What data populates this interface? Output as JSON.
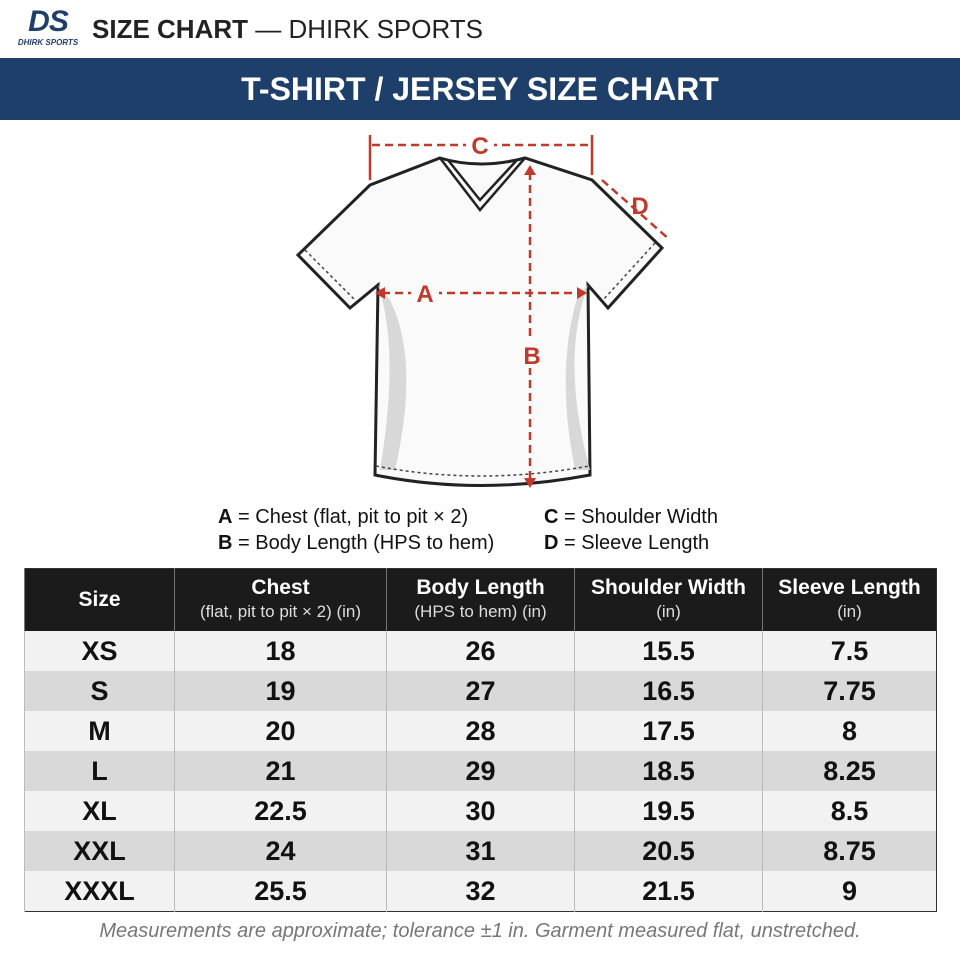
{
  "header": {
    "logo": "DS",
    "logo_sub": "DHIRK SPORTS",
    "title": "SIZE CHART",
    "separator": "—",
    "brand": "DHIRK SPORTS"
  },
  "banner": "T-SHIRT / JERSEY SIZE CHART",
  "legend": [
    {
      "key": "A",
      "text": "= Chest (flat, pit to pit × 2)"
    },
    {
      "key": "B",
      "text": "= Body Length (HPS to hem)"
    },
    {
      "key": "C",
      "text": "= Shoulder Width"
    },
    {
      "key": "D",
      "text": "= Sleeve Length"
    }
  ],
  "table": {
    "columns": [
      {
        "name": "Size"
      },
      {
        "name": "Chest",
        "unit": "(flat, pit to pit × 2) (in)"
      },
      {
        "name": "Body Length",
        "unit": "(HPS to hem) (in)"
      },
      {
        "name": "Shoulder Width",
        "unit": "(in)"
      },
      {
        "name": "Sleeve Length",
        "unit": "(in)"
      }
    ],
    "rows": [
      [
        "XS",
        18,
        26,
        15.5,
        7.5
      ],
      [
        "S",
        19,
        27,
        16.5,
        7.75
      ],
      [
        "M",
        20,
        28,
        17.5,
        8
      ],
      [
        "L",
        21,
        29,
        18.5,
        8.25
      ],
      [
        "XL",
        22.5,
        30,
        19.5,
        8.5
      ],
      [
        "XXL",
        24,
        31,
        20.5,
        8.75
      ],
      [
        "XXXL",
        25.5,
        32,
        21.5,
        9
      ]
    ]
  },
  "footnote": "Measurements are approximate; tolerance ±1 in. Garment measured flat, unstretched."
}
